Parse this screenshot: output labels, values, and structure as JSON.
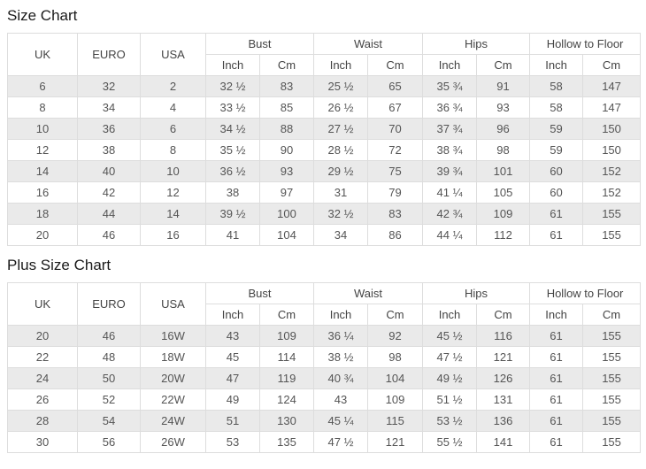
{
  "colors": {
    "border": "#dddddd",
    "row_shaded": "#eaeaea",
    "cell_text": "#555555",
    "header_text": "#444444",
    "title_text": "#1a1a1a"
  },
  "tables": [
    {
      "title": "Size Chart",
      "plain_columns": [
        "UK",
        "EURO",
        "USA"
      ],
      "grouped_columns": [
        "Bust",
        "Waist",
        "Hips",
        "Hollow to Floor"
      ],
      "sub_columns": [
        "Inch",
        "Cm"
      ],
      "rows": [
        [
          "6",
          "32",
          "2",
          "32 ½",
          "83",
          "25 ½",
          "65",
          "35 ¾",
          "91",
          "58",
          "147"
        ],
        [
          "8",
          "34",
          "4",
          "33 ½",
          "85",
          "26 ½",
          "67",
          "36 ¾",
          "93",
          "58",
          "147"
        ],
        [
          "10",
          "36",
          "6",
          "34 ½",
          "88",
          "27 ½",
          "70",
          "37 ¾",
          "96",
          "59",
          "150"
        ],
        [
          "12",
          "38",
          "8",
          "35 ½",
          "90",
          "28 ½",
          "72",
          "38 ¾",
          "98",
          "59",
          "150"
        ],
        [
          "14",
          "40",
          "10",
          "36 ½",
          "93",
          "29 ½",
          "75",
          "39 ¾",
          "101",
          "60",
          "152"
        ],
        [
          "16",
          "42",
          "12",
          "38",
          "97",
          "31",
          "79",
          "41 ¼",
          "105",
          "60",
          "152"
        ],
        [
          "18",
          "44",
          "14",
          "39 ½",
          "100",
          "32 ½",
          "83",
          "42 ¾",
          "109",
          "61",
          "155"
        ],
        [
          "20",
          "46",
          "16",
          "41",
          "104",
          "34",
          "86",
          "44 ¼",
          "112",
          "61",
          "155"
        ]
      ]
    },
    {
      "title": "Plus Size Chart",
      "plain_columns": [
        "UK",
        "EURO",
        "USA"
      ],
      "grouped_columns": [
        "Bust",
        "Waist",
        "Hips",
        "Hollow to Floor"
      ],
      "sub_columns": [
        "Inch",
        "Cm"
      ],
      "rows": [
        [
          "20",
          "46",
          "16W",
          "43",
          "109",
          "36 ¼",
          "92",
          "45 ½",
          "116",
          "61",
          "155"
        ],
        [
          "22",
          "48",
          "18W",
          "45",
          "114",
          "38 ½",
          "98",
          "47 ½",
          "121",
          "61",
          "155"
        ],
        [
          "24",
          "50",
          "20W",
          "47",
          "119",
          "40 ¾",
          "104",
          "49 ½",
          "126",
          "61",
          "155"
        ],
        [
          "26",
          "52",
          "22W",
          "49",
          "124",
          "43",
          "109",
          "51 ½",
          "131",
          "61",
          "155"
        ],
        [
          "28",
          "54",
          "24W",
          "51",
          "130",
          "45 ¼",
          "115",
          "53 ½",
          "136",
          "61",
          "155"
        ],
        [
          "30",
          "56",
          "26W",
          "53",
          "135",
          "47 ½",
          "121",
          "55 ½",
          "141",
          "61",
          "155"
        ]
      ]
    }
  ]
}
